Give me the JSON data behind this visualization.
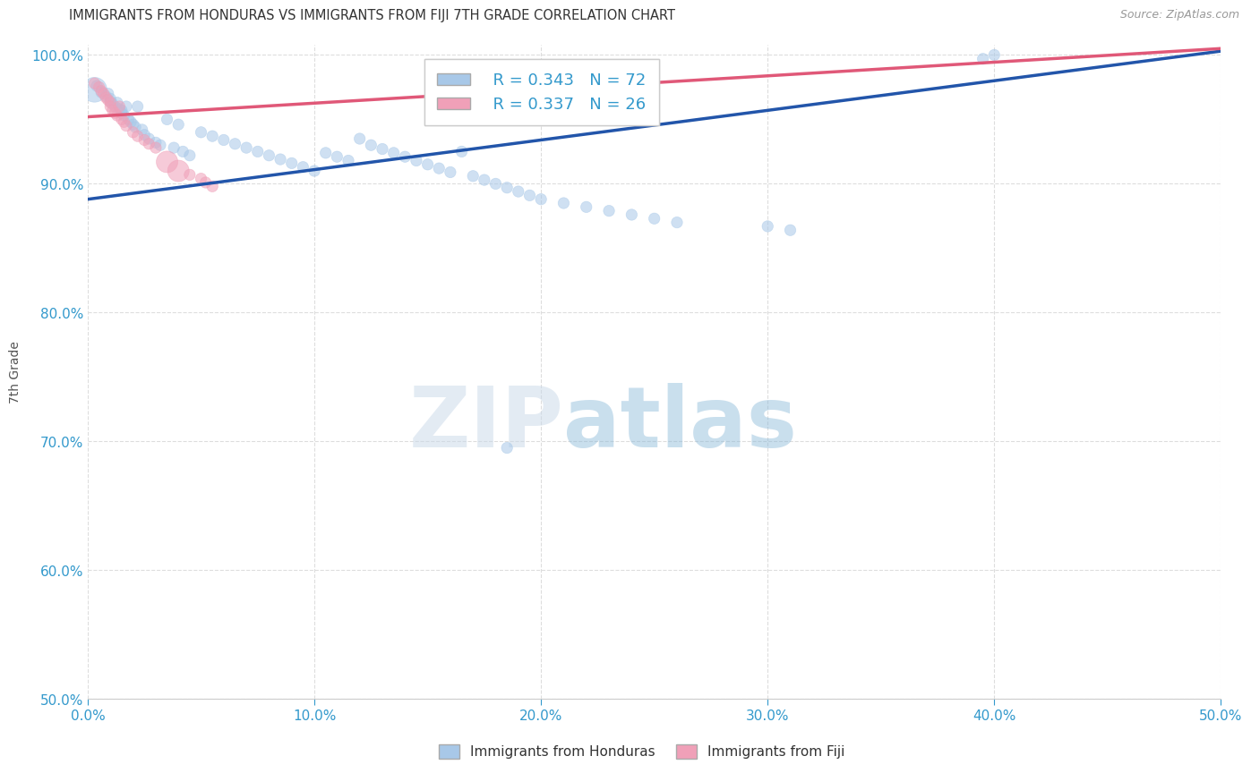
{
  "title": "IMMIGRANTS FROM HONDURAS VS IMMIGRANTS FROM FIJI 7TH GRADE CORRELATION CHART",
  "source_text": "Source: ZipAtlas.com",
  "ylabel": "7th Grade",
  "xlim": [
    0.0,
    0.5
  ],
  "ylim": [
    0.5,
    1.008
  ],
  "xticks": [
    0.0,
    0.1,
    0.2,
    0.3,
    0.4,
    0.5
  ],
  "yticks": [
    0.5,
    0.6,
    0.7,
    0.8,
    0.9,
    1.0
  ],
  "ytick_labels": [
    "50.0%",
    "60.0%",
    "70.0%",
    "80.0%",
    "90.0%",
    "100.0%"
  ],
  "xtick_labels": [
    "0.0%",
    "10.0%",
    "20.0%",
    "30.0%",
    "40.0%",
    "50.0%"
  ],
  "legend_r_blue": "R = 0.343",
  "legend_n_blue": "N = 72",
  "legend_r_pink": "R = 0.337",
  "legend_n_pink": "N = 26",
  "blue_color": "#a8c8e8",
  "pink_color": "#f0a0b8",
  "blue_line_color": "#2255aa",
  "pink_line_color": "#e05878",
  "title_color": "#333333",
  "axis_color": "#3399cc",
  "watermark_zip": "ZIP",
  "watermark_atlas": "atlas",
  "blue_line_x": [
    0.0,
    0.5
  ],
  "blue_line_y": [
    0.888,
    1.003
  ],
  "pink_line_x": [
    0.0,
    0.5
  ],
  "pink_line_y": [
    0.952,
    1.005
  ],
  "blue_scatter_x": [
    0.003,
    0.004,
    0.006,
    0.008,
    0.009,
    0.01,
    0.01,
    0.011,
    0.012,
    0.013,
    0.014,
    0.015,
    0.015,
    0.016,
    0.017,
    0.018,
    0.019,
    0.02,
    0.021,
    0.022,
    0.024,
    0.025,
    0.027,
    0.03,
    0.032,
    0.035,
    0.038,
    0.04,
    0.042,
    0.045,
    0.05,
    0.055,
    0.06,
    0.065,
    0.07,
    0.075,
    0.08,
    0.085,
    0.09,
    0.095,
    0.1,
    0.105,
    0.11,
    0.115,
    0.12,
    0.125,
    0.13,
    0.135,
    0.14,
    0.145,
    0.15,
    0.155,
    0.16,
    0.165,
    0.17,
    0.175,
    0.18,
    0.185,
    0.19,
    0.195,
    0.2,
    0.21,
    0.22,
    0.23,
    0.24,
    0.25,
    0.26,
    0.3,
    0.31,
    0.395,
    0.4,
    0.185
  ],
  "blue_scatter_y": [
    0.973,
    0.976,
    0.971,
    0.968,
    0.97,
    0.966,
    0.964,
    0.962,
    0.96,
    0.963,
    0.958,
    0.955,
    0.957,
    0.953,
    0.96,
    0.95,
    0.948,
    0.946,
    0.944,
    0.96,
    0.942,
    0.938,
    0.935,
    0.932,
    0.93,
    0.95,
    0.928,
    0.946,
    0.925,
    0.922,
    0.94,
    0.937,
    0.934,
    0.931,
    0.928,
    0.925,
    0.922,
    0.919,
    0.916,
    0.913,
    0.91,
    0.924,
    0.921,
    0.918,
    0.935,
    0.93,
    0.927,
    0.924,
    0.921,
    0.918,
    0.915,
    0.912,
    0.909,
    0.925,
    0.906,
    0.903,
    0.9,
    0.897,
    0.894,
    0.891,
    0.888,
    0.885,
    0.882,
    0.879,
    0.876,
    0.873,
    0.87,
    0.867,
    0.864,
    0.997,
    1.0,
    0.695
  ],
  "blue_scatter_sizes": [
    400,
    80,
    80,
    80,
    80,
    80,
    80,
    80,
    80,
    80,
    80,
    80,
    80,
    80,
    80,
    80,
    80,
    80,
    80,
    80,
    80,
    80,
    80,
    80,
    80,
    80,
    80,
    80,
    80,
    80,
    80,
    80,
    80,
    80,
    80,
    80,
    80,
    80,
    80,
    80,
    80,
    80,
    80,
    80,
    80,
    80,
    80,
    80,
    80,
    80,
    80,
    80,
    80,
    80,
    80,
    80,
    80,
    80,
    80,
    80,
    80,
    80,
    80,
    80,
    80,
    80,
    80,
    80,
    80,
    80,
    80,
    80
  ],
  "pink_scatter_x": [
    0.003,
    0.005,
    0.006,
    0.007,
    0.008,
    0.009,
    0.01,
    0.01,
    0.011,
    0.012,
    0.013,
    0.014,
    0.015,
    0.016,
    0.017,
    0.02,
    0.022,
    0.025,
    0.027,
    0.03,
    0.035,
    0.04,
    0.045,
    0.05,
    0.052,
    0.055
  ],
  "pink_scatter_y": [
    0.978,
    0.975,
    0.972,
    0.97,
    0.967,
    0.965,
    0.963,
    0.96,
    0.957,
    0.955,
    0.953,
    0.96,
    0.95,
    0.948,
    0.945,
    0.94,
    0.937,
    0.934,
    0.931,
    0.928,
    0.917,
    0.91,
    0.907,
    0.904,
    0.901,
    0.898
  ],
  "pink_scatter_sizes": [
    80,
    80,
    80,
    80,
    80,
    80,
    80,
    80,
    80,
    80,
    80,
    80,
    80,
    80,
    80,
    80,
    80,
    80,
    80,
    80,
    300,
    300,
    80,
    80,
    80,
    80
  ],
  "grid_color": "#dddddd",
  "bg_color": "#ffffff"
}
